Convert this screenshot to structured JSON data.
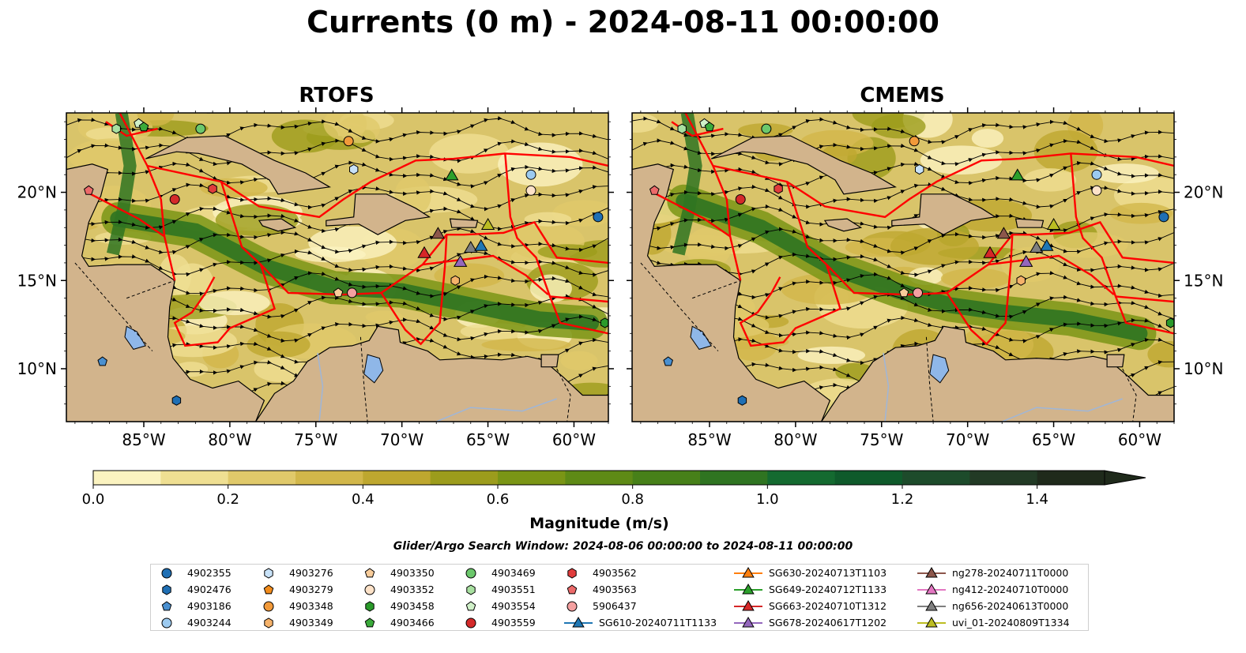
{
  "title": "Currents (0 m) - 2024-08-11 00:00:00",
  "panels": [
    {
      "id": "rtofs",
      "title": "RTOFS"
    },
    {
      "id": "cmems",
      "title": "CMEMS"
    }
  ],
  "lon_ticks": [
    "85°W",
    "80°W",
    "75°W",
    "70°W",
    "65°W",
    "60°W"
  ],
  "lat_ticks": [
    "20°N",
    "15°N",
    "10°N"
  ],
  "extent": {
    "lon": [
      -89.5,
      -58.0
    ],
    "lat": [
      7.0,
      24.5
    ]
  },
  "colorbar": {
    "label": "Magnitude (m/s)",
    "ticks": [
      "0.0",
      "0.2",
      "0.4",
      "0.6",
      "0.8",
      "1.0",
      "1.2",
      "1.4"
    ],
    "range": [
      0,
      1.5
    ],
    "extend": "max",
    "colors": [
      "#fbf3c0",
      "#efdf92",
      "#e0c96a",
      "#d2b74a",
      "#bea72f",
      "#9c9c1c",
      "#7a9515",
      "#5e8a16",
      "#478019",
      "#2f7421",
      "#146a30",
      "#0f5a2b",
      "#1d4b2b",
      "#223a25",
      "#1f2a1b"
    ]
  },
  "subtitle": "Glider/Argo Search Window: 2024-08-06 00:00:00 to 2024-08-11 00:00:00",
  "colors": {
    "land": "#d2b48c",
    "eez": "#ff0000",
    "lake": "#8fb7e8",
    "river": "#9fb6d8"
  },
  "legend": [
    {
      "label": "4902355",
      "marker": "circle",
      "color": "#1f6fb4"
    },
    {
      "label": "4902476",
      "marker": "hexagon",
      "color": "#1f6fb4"
    },
    {
      "label": "4903186",
      "marker": "pentagon",
      "color": "#4a90d0"
    },
    {
      "label": "4903244",
      "marker": "circle",
      "color": "#9ccaf0"
    },
    {
      "label": "4903276",
      "marker": "hexagon",
      "color": "#c8e2f8"
    },
    {
      "label": "4903279",
      "marker": "pentagon",
      "color": "#f28c1c"
    },
    {
      "label": "4903348",
      "marker": "circle",
      "color": "#f29a3a"
    },
    {
      "label": "4903349",
      "marker": "hexagon",
      "color": "#f5b26a"
    },
    {
      "label": "4903350",
      "marker": "pentagon",
      "color": "#f8cc9a"
    },
    {
      "label": "4903352",
      "marker": "circle",
      "color": "#fde2c8"
    },
    {
      "label": "4903458",
      "marker": "hexagon",
      "color": "#2a9a2a"
    },
    {
      "label": "4903466",
      "marker": "pentagon",
      "color": "#3aaa3a"
    },
    {
      "label": "4903469",
      "marker": "circle",
      "color": "#6cc86c"
    },
    {
      "label": "4903551",
      "marker": "hexagon",
      "color": "#a8e0a0"
    },
    {
      "label": "4903554",
      "marker": "pentagon",
      "color": "#d0f0c8"
    },
    {
      "label": "4903559",
      "marker": "circle",
      "color": "#d42a2a"
    },
    {
      "label": "4903562",
      "marker": "hexagon",
      "color": "#e03c3c"
    },
    {
      "label": "4903563",
      "marker": "pentagon",
      "color": "#ec6a6a"
    },
    {
      "label": "5906437",
      "marker": "circle",
      "color": "#f4a0a0"
    },
    {
      "label": "SG610-20240711T1133",
      "marker": "triangle-line",
      "color": "#1f77b4"
    },
    {
      "label": "SG630-20240713T1103",
      "marker": "triangle-line",
      "color": "#ff7f0e"
    },
    {
      "label": "SG649-20240712T1133",
      "marker": "triangle-line",
      "color": "#2ca02c"
    },
    {
      "label": "SG663-20240710T1312",
      "marker": "triangle-line",
      "color": "#d62728"
    },
    {
      "label": "SG678-20240617T1202",
      "marker": "triangle-line",
      "color": "#9467bd"
    },
    {
      "label": "ng278-20240711T0000",
      "marker": "triangle-line",
      "color": "#8c564b"
    },
    {
      "label": "ng412-20240710T0000",
      "marker": "triangle-line",
      "color": "#e377c2"
    },
    {
      "label": "ng656-20240613T0000",
      "marker": "triangle-line",
      "color": "#7f7f7f"
    },
    {
      "label": "uvi_01-20240809T1334",
      "marker": "triangle-line",
      "color": "#bcbd22"
    }
  ],
  "floats": [
    {
      "label": "4902355",
      "lon": -58.6,
      "lat": 18.6
    },
    {
      "label": "4903186",
      "lon": -87.4,
      "lat": 10.4
    },
    {
      "label": "4903244",
      "lon": -62.5,
      "lat": 21.0
    },
    {
      "label": "4903276",
      "lon": -72.8,
      "lat": 21.3
    },
    {
      "label": "4903348",
      "lon": -73.1,
      "lat": 22.9
    },
    {
      "label": "4903350",
      "lon": -73.7,
      "lat": 14.3
    },
    {
      "label": "4903352",
      "lon": -62.5,
      "lat": 20.1
    },
    {
      "label": "4903349",
      "lon": -66.9,
      "lat": 15.0
    },
    {
      "label": "4903469",
      "lon": -81.7,
      "lat": 23.6
    },
    {
      "label": "4903551",
      "lon": -86.6,
      "lat": 23.6
    },
    {
      "label": "4903554",
      "lon": -85.3,
      "lat": 23.9
    },
    {
      "label": "4903466",
      "lon": -85.0,
      "lat": 23.7
    },
    {
      "label": "4903559",
      "lon": -83.2,
      "lat": 19.6
    },
    {
      "label": "4903562",
      "lon": -81.0,
      "lat": 20.2
    },
    {
      "label": "4903563",
      "lon": -88.2,
      "lat": 20.1
    },
    {
      "label": "5906437",
      "lon": -72.9,
      "lat": 14.3
    },
    {
      "label": "4903458",
      "lon": -58.2,
      "lat": 12.6
    },
    {
      "label": "4902476",
      "lon": -83.1,
      "lat": 8.2
    }
  ],
  "gliders": [
    {
      "label": "SG649-20240712T1133",
      "lon": -67.1,
      "lat": 20.9
    },
    {
      "label": "ng278-20240711T0000",
      "lon": -67.9,
      "lat": 17.6
    },
    {
      "label": "SG663-20240710T1312",
      "lon": -68.7,
      "lat": 16.5
    },
    {
      "label": "ng656-20240613T0000",
      "lon": -66.0,
      "lat": 16.8
    },
    {
      "label": "SG610-20240711T1133",
      "lon": -65.4,
      "lat": 16.9
    },
    {
      "label": "SG678-20240617T1202",
      "lon": -66.6,
      "lat": 16.0
    },
    {
      "label": "uvi_01-20240809T1334",
      "lon": -65.0,
      "lat": 18.1
    }
  ]
}
